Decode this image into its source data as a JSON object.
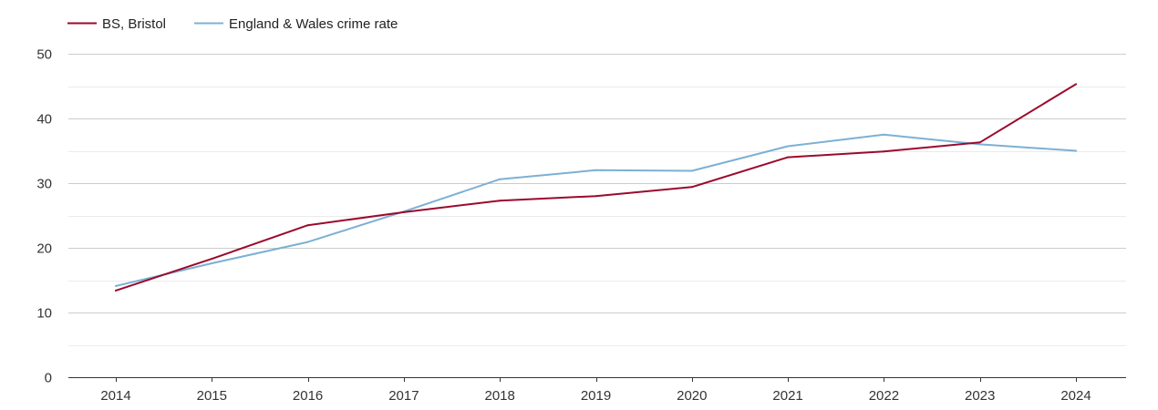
{
  "chart_data": {
    "type": "line",
    "title": "",
    "xlabel": "",
    "ylabel": "",
    "categories": [
      "2014",
      "2015",
      "2016",
      "2017",
      "2018",
      "2019",
      "2020",
      "2021",
      "2022",
      "2023",
      "2024"
    ],
    "ylim": [
      0,
      50
    ],
    "y_ticks": [
      "0",
      "10",
      "20",
      "30",
      "40",
      "50"
    ],
    "grid": true,
    "legend_position": "top-left",
    "series": [
      {
        "name": "BS, Bristol",
        "color": "#9b0a2c",
        "values": [
          13.4,
          18.3,
          23.5,
          25.5,
          27.3,
          28.0,
          29.4,
          34.0,
          34.9,
          36.3,
          45.3
        ]
      },
      {
        "name": "England & Wales crime rate",
        "color": "#7cb0d4",
        "values": [
          14.1,
          17.6,
          20.9,
          25.6,
          30.6,
          32.0,
          31.9,
          35.7,
          37.5,
          36.0,
          35.0
        ]
      }
    ]
  }
}
